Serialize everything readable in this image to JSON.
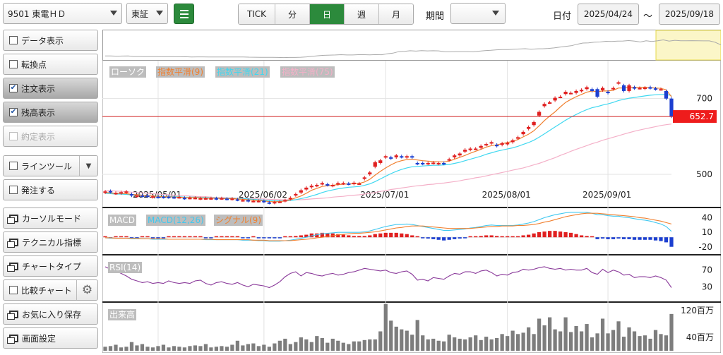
{
  "toolbar": {
    "symbol": "9501 東電ＨＤ",
    "market": "東証",
    "periods": [
      "TICK",
      "分",
      "日",
      "週",
      "月"
    ],
    "active_period": "日",
    "range_label": "期間",
    "range_value": "",
    "date_label": "日付",
    "date_from": "2025/04/24",
    "tilde": "～",
    "date_to": "2025/09/18"
  },
  "sidebar": {
    "items": [
      {
        "label": "データ表示",
        "kind": "check",
        "checked": false,
        "state": "normal"
      },
      {
        "label": "転換点",
        "kind": "check",
        "checked": false,
        "state": "normal"
      },
      {
        "label": "注文表示",
        "kind": "check",
        "checked": true,
        "state": "on"
      },
      {
        "label": "残高表示",
        "kind": "check",
        "checked": true,
        "state": "on"
      },
      {
        "label": "約定表示",
        "kind": "check",
        "checked": false,
        "state": "disabled"
      },
      {
        "label": "ラインツール",
        "kind": "check-dropdown",
        "checked": false,
        "state": "normal"
      },
      {
        "label": "発注する",
        "kind": "check",
        "checked": false,
        "state": "normal"
      },
      {
        "label": "カーソルモード",
        "kind": "window",
        "state": "normal"
      },
      {
        "label": "テクニカル指標",
        "kind": "window",
        "state": "normal"
      },
      {
        "label": "チャートタイプ",
        "kind": "window",
        "state": "normal"
      },
      {
        "label": "比較チャート",
        "kind": "check-gear",
        "checked": false,
        "state": "normal"
      },
      {
        "label": "お気に入り保存",
        "kind": "window",
        "state": "normal"
      },
      {
        "label": "画面設定",
        "kind": "window",
        "state": "normal"
      }
    ]
  },
  "colors": {
    "up": "#e02020",
    "down": "#1c3fd0",
    "ema9": "#f08030",
    "ema21": "#40d8f0",
    "ema75": "#f4b0c8",
    "macd": "#40c8f0",
    "signal": "#f08030",
    "rsi": "#8a3a9a",
    "volume": "#7d7d7d",
    "accent": "#2c8a3c"
  },
  "chart_data": [
    {
      "type": "candlestick",
      "panel": "price",
      "legend": [
        "ローソク",
        "指数平滑(9)",
        "指数平滑(21)",
        "指数平滑(75)"
      ],
      "y_ticks": [
        700,
        500
      ],
      "ylim": [
        420,
        800
      ],
      "last_price": "652.7",
      "x_ticks": [
        "2025/05/01",
        "2025/06/02",
        "2025/07/01",
        "2025/08/01",
        "2025/09/01"
      ],
      "x_tick_index": [
        10,
        30,
        53,
        76,
        95
      ],
      "close": [
        455,
        454,
        451,
        453,
        455,
        444,
        444,
        443,
        442,
        442,
        440,
        440,
        440,
        439,
        440,
        437,
        438,
        438,
        437,
        437,
        437,
        436,
        437,
        435,
        436,
        433,
        432,
        430,
        430,
        430,
        428,
        425,
        427,
        428,
        432,
        438,
        448,
        458,
        465,
        470,
        472,
        477,
        472,
        472,
        477,
        477,
        475,
        478,
        476,
        492,
        505,
        532,
        537,
        548,
        542,
        550,
        546,
        548,
        545,
        528,
        528,
        530,
        531,
        530,
        528,
        540,
        550,
        555,
        565,
        568,
        568,
        575,
        580,
        585,
        575,
        582,
        583,
        590,
        598,
        612,
        625,
        638,
        665,
        686,
        690,
        702,
        705,
        718,
        715,
        720,
        723,
        730,
        720,
        705,
        728,
        715,
        728,
        743,
        720,
        735,
        727,
        728,
        729,
        728,
        725,
        725,
        700,
        652.7
      ],
      "open": [
        452,
        456,
        450,
        450,
        452,
        448,
        442,
        444,
        444,
        440,
        441,
        441,
        441,
        440,
        440,
        438,
        438,
        438,
        436,
        437,
        437,
        437,
        437,
        436,
        435,
        434,
        432,
        432,
        430,
        430,
        430,
        426,
        425,
        428,
        430,
        435,
        445,
        452,
        460,
        466,
        470,
        475,
        474,
        470,
        474,
        476,
        476,
        475,
        476,
        488,
        500,
        520,
        530,
        545,
        545,
        545,
        548,
        545,
        548,
        530,
        530,
        528,
        530,
        528,
        530,
        538,
        545,
        550,
        560,
        565,
        568,
        570,
        578,
        582,
        578,
        578,
        580,
        585,
        595,
        606,
        620,
        630,
        655,
        680,
        690,
        695,
        705,
        712,
        715,
        715,
        720,
        725,
        725,
        725,
        722,
        718,
        725,
        740,
        735,
        720,
        730,
        728,
        726,
        730,
        727,
        725,
        720,
        700
      ],
      "ema9": [
        452,
        451,
        450,
        450,
        449,
        447,
        446,
        445,
        444,
        443,
        442,
        441,
        441,
        440,
        440,
        439,
        439,
        439,
        438,
        437,
        437,
        437,
        436,
        436,
        436,
        435,
        434,
        433,
        432,
        431,
        430,
        428,
        428,
        428,
        430,
        433,
        438,
        443,
        450,
        458,
        463,
        468,
        470,
        471,
        473,
        474,
        475,
        475,
        476,
        480,
        487,
        498,
        508,
        517,
        525,
        532,
        536,
        539,
        540,
        538,
        536,
        535,
        534,
        533,
        533,
        535,
        540,
        545,
        550,
        556,
        561,
        566,
        572,
        576,
        578,
        581,
        584,
        587,
        592,
        599,
        606,
        615,
        628,
        642,
        654,
        665,
        678,
        690,
        698,
        705,
        711,
        717,
        720,
        718,
        720,
        720,
        722,
        728,
        728,
        730,
        730,
        730,
        730,
        729,
        728,
        727,
        723,
        705
      ],
      "ema21": [
        450,
        449,
        448,
        448,
        447,
        446,
        446,
        445,
        444,
        443,
        443,
        442,
        442,
        441,
        441,
        440,
        440,
        440,
        439,
        439,
        438,
        438,
        437,
        437,
        437,
        436,
        436,
        435,
        434,
        433,
        432,
        431,
        430,
        430,
        430,
        431,
        433,
        436,
        439,
        443,
        447,
        452,
        456,
        459,
        462,
        464,
        466,
        467,
        468,
        471,
        475,
        481,
        488,
        495,
        502,
        508,
        513,
        517,
        520,
        521,
        522,
        523,
        524,
        524,
        525,
        526,
        529,
        532,
        536,
        540,
        544,
        548,
        553,
        557,
        561,
        564,
        567,
        570,
        574,
        579,
        584,
        590,
        598,
        607,
        616,
        625,
        634,
        643,
        651,
        658,
        665,
        671,
        676,
        679,
        683,
        686,
        690,
        695,
        698,
        701,
        703,
        705,
        707,
        709,
        710,
        711,
        711,
        708
      ],
      "ema75": [
        458,
        457,
        456,
        455,
        454,
        453,
        452,
        451,
        450,
        449,
        448,
        447,
        446,
        445,
        444,
        444,
        443,
        442,
        441,
        441,
        440,
        439,
        439,
        438,
        438,
        437,
        437,
        436,
        436,
        435,
        435,
        434,
        434,
        433,
        433,
        433,
        433,
        433,
        434,
        435,
        436,
        437,
        438,
        440,
        441,
        442,
        444,
        445,
        446,
        448,
        450,
        452,
        455,
        457,
        460,
        462,
        464,
        466,
        468,
        470,
        471,
        473,
        474,
        476,
        477,
        479,
        481,
        483,
        486,
        488,
        491,
        493,
        496,
        499,
        502,
        505,
        508,
        511,
        514,
        517,
        521,
        525,
        529,
        534,
        539,
        544,
        550,
        555,
        561,
        566,
        571,
        576,
        581,
        585,
        590,
        594,
        598,
        602,
        606,
        610,
        614,
        617,
        620,
        623,
        626,
        629,
        631,
        633
      ],
      "navigator_highlight": [
        0.895,
        1.0
      ]
    },
    {
      "type": "bar+line",
      "panel": "macd",
      "legend": [
        "MACD",
        "MACD(12,26)",
        "シグナル(9)"
      ],
      "y_ticks": [
        40,
        10,
        -20
      ],
      "ylim": [
        -30,
        55
      ],
      "macd": [
        -1,
        -2,
        -2,
        -2,
        -2,
        -3,
        -3,
        -3,
        -3,
        -4,
        -4,
        -4,
        -4,
        -4,
        -4,
        -4,
        -4,
        -4,
        -4,
        -5,
        -5,
        -5,
        -5,
        -5,
        -5,
        -5,
        -6,
        -6,
        -6,
        -7,
        -7,
        -8,
        -8,
        -8,
        -7,
        -6,
        -4,
        -2,
        0,
        3,
        5,
        7,
        8,
        9,
        10,
        10,
        10,
        10,
        10,
        11,
        13,
        16,
        19,
        22,
        24,
        26,
        26,
        27,
        26,
        24,
        22,
        20,
        18,
        16,
        14,
        14,
        15,
        16,
        17,
        19,
        20,
        22,
        24,
        25,
        24,
        24,
        24,
        24,
        25,
        27,
        29,
        32,
        36,
        40,
        43,
        46,
        48,
        50,
        51,
        51,
        51,
        51,
        49,
        46,
        46,
        44,
        43,
        43,
        41,
        40,
        38,
        36,
        35,
        33,
        30,
        27,
        22,
        12
      ],
      "signal": [
        -1,
        -1,
        -2,
        -2,
        -2,
        -2,
        -2,
        -3,
        -3,
        -3,
        -3,
        -3,
        -4,
        -4,
        -4,
        -4,
        -4,
        -4,
        -4,
        -4,
        -4,
        -5,
        -5,
        -5,
        -5,
        -5,
        -5,
        -5,
        -6,
        -6,
        -6,
        -7,
        -7,
        -7,
        -7,
        -7,
        -6,
        -5,
        -4,
        -3,
        -1,
        0,
        2,
        3,
        5,
        6,
        7,
        8,
        8,
        9,
        10,
        11,
        13,
        15,
        17,
        19,
        20,
        22,
        23,
        23,
        23,
        22,
        21,
        20,
        19,
        18,
        18,
        18,
        18,
        18,
        19,
        20,
        21,
        22,
        22,
        23,
        23,
        23,
        24,
        24,
        25,
        26,
        28,
        31,
        33,
        36,
        39,
        42,
        44,
        46,
        48,
        49,
        49,
        49,
        48,
        47,
        46,
        45,
        44,
        43,
        42,
        40,
        39,
        37,
        35,
        33,
        30,
        27
      ],
      "histogram": [
        0,
        -1,
        0,
        0,
        0,
        -1,
        -1,
        0,
        0,
        -1,
        -1,
        -1,
        0,
        0,
        0,
        0,
        0,
        0,
        0,
        -1,
        -1,
        0,
        0,
        0,
        0,
        0,
        -1,
        -1,
        0,
        -1,
        -1,
        -1,
        -1,
        -1,
        0,
        1,
        2,
        3,
        4,
        6,
        6,
        7,
        6,
        6,
        5,
        4,
        3,
        2,
        2,
        2,
        3,
        5,
        6,
        7,
        7,
        7,
        6,
        5,
        3,
        1,
        -1,
        -2,
        -3,
        -4,
        -5,
        -4,
        -3,
        -2,
        -1,
        1,
        1,
        2,
        3,
        3,
        2,
        1,
        1,
        1,
        1,
        3,
        4,
        6,
        8,
        9,
        10,
        10,
        9,
        8,
        7,
        5,
        3,
        2,
        0,
        -3,
        -2,
        -3,
        -3,
        -2,
        -3,
        -3,
        -4,
        -4,
        -4,
        -4,
        -5,
        -6,
        -8,
        -15
      ]
    },
    {
      "type": "line",
      "panel": "rsi",
      "legend": [
        "RSI(14)"
      ],
      "y_ticks": [
        70,
        30
      ],
      "ylim": [
        0,
        100
      ],
      "rsi": [
        78,
        72,
        68,
        62,
        56,
        48,
        44,
        40,
        42,
        38,
        40,
        38,
        44,
        40,
        38,
        40,
        38,
        44,
        46,
        38,
        34,
        40,
        42,
        38,
        36,
        40,
        34,
        30,
        36,
        34,
        32,
        28,
        34,
        42,
        54,
        62,
        66,
        56,
        64,
        62,
        58,
        56,
        60,
        62,
        58,
        60,
        64,
        66,
        70,
        74,
        72,
        70,
        68,
        70,
        64,
        62,
        66,
        68,
        60,
        46,
        48,
        44,
        52,
        50,
        48,
        56,
        62,
        60,
        66,
        66,
        62,
        68,
        70,
        64,
        56,
        60,
        58,
        64,
        66,
        72,
        70,
        72,
        76,
        78,
        74,
        72,
        74,
        70,
        72,
        70,
        70,
        74,
        64,
        60,
        72,
        64,
        70,
        66,
        58,
        60,
        52,
        54,
        54,
        52,
        56,
        52,
        46,
        28
      ]
    },
    {
      "type": "bar",
      "panel": "volume",
      "legend": [
        "出来高"
      ],
      "y_ticks": [
        "120百万",
        "40百万"
      ],
      "ylim": [
        0,
        135
      ],
      "volume": [
        12,
        14,
        18,
        10,
        12,
        26,
        16,
        20,
        12,
        10,
        14,
        18,
        10,
        14,
        12,
        10,
        14,
        16,
        14,
        20,
        10,
        12,
        14,
        12,
        18,
        30,
        16,
        20,
        22,
        14,
        18,
        12,
        22,
        30,
        36,
        20,
        26,
        40,
        34,
        26,
        44,
        38,
        24,
        36,
        30,
        24,
        20,
        28,
        28,
        32,
        34,
        34,
        58,
        140,
        90,
        72,
        64,
        60,
        48,
        92,
        46,
        34,
        36,
        30,
        28,
        48,
        40,
        36,
        34,
        40,
        46,
        32,
        42,
        34,
        38,
        50,
        44,
        60,
        50,
        54,
        70,
        50,
        96,
        76,
        100,
        64,
        58,
        100,
        56,
        74,
        58,
        80,
        40,
        52,
        96,
        52,
        62,
        88,
        42,
        70,
        58,
        44,
        46,
        36,
        62,
        50,
        46,
        110
      ]
    }
  ]
}
